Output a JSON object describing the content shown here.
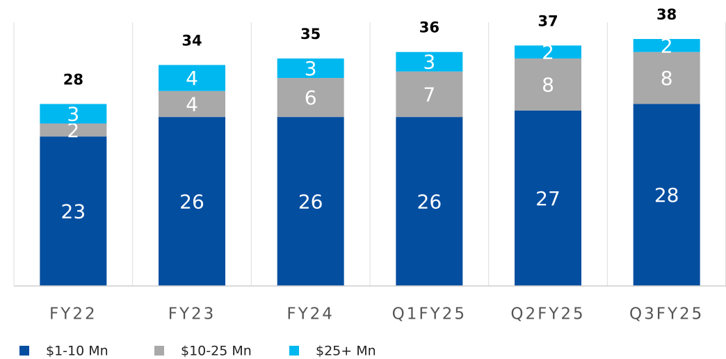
{
  "chart_data": {
    "type": "stacked_bar",
    "categories": [
      "FY22",
      "FY23",
      "FY24",
      "Q1FY25",
      "Q2FY25",
      "Q3FY25"
    ],
    "series": [
      {
        "name": "$1-10 Mn",
        "color": "#044ea0",
        "values": [
          23,
          26,
          26,
          26,
          27,
          28
        ]
      },
      {
        "name": "$10-25 Mn",
        "color": "#a9a9a9",
        "values": [
          2,
          4,
          6,
          7,
          8,
          8
        ]
      },
      {
        "name": "$25+ Mn",
        "color": "#00b8f0",
        "values": [
          3,
          4,
          3,
          3,
          2,
          2
        ]
      }
    ],
    "totals": [
      28,
      34,
      35,
      36,
      37,
      38
    ],
    "ylim": [
      0,
      44
    ]
  }
}
